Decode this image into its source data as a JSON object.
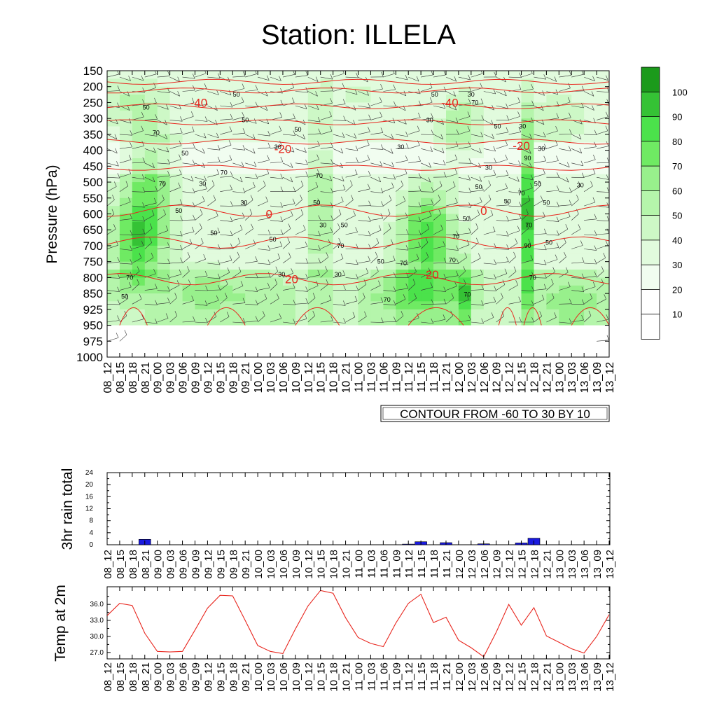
{
  "title": "Station: ILLELA",
  "time_labels": [
    "08_12",
    "08_15",
    "08_18",
    "08_21",
    "09_00",
    "09_03",
    "09_06",
    "09_09",
    "09_12",
    "09_15",
    "09_18",
    "09_21",
    "10_00",
    "10_03",
    "10_06",
    "10_09",
    "10_12",
    "10_15",
    "10_18",
    "10_21",
    "11_00",
    "11_03",
    "11_06",
    "11_09",
    "11_12",
    "11_15",
    "11_18",
    "11_21",
    "12_00",
    "12_03",
    "12_06",
    "12_09",
    "12_12",
    "12_15",
    "12_18",
    "12_21",
    "13_00",
    "13_03",
    "13_06",
    "13_09",
    "13_12"
  ],
  "colors": {
    "green_scale": [
      "#ffffff",
      "#f1fdf0",
      "#e1fbdd",
      "#cdf8c6",
      "#b5f5ab",
      "#98f08c",
      "#6fea63",
      "#4be24b",
      "#35c235",
      "#1b9a1b"
    ],
    "temp_contour": "#e8261e",
    "rain_bar": "#1a1ae0",
    "temp_line": "#e8261e"
  },
  "chart_data": [
    {
      "type": "heatmap",
      "ylabel": "Pressure (hPa)",
      "y_ticks": [
        150,
        200,
        250,
        300,
        350,
        400,
        450,
        500,
        550,
        600,
        650,
        700,
        750,
        800,
        850,
        925,
        950,
        975,
        1000
      ],
      "colorbar_ticks": [
        10,
        20,
        30,
        40,
        50,
        60,
        70,
        80,
        90,
        100
      ],
      "contour_info": "CONTOUR FROM -60 TO 30 BY 10",
      "contour_labels": [
        {
          "text": "-40",
          "t": 7.3,
          "p": 250
        },
        {
          "text": "-40",
          "t": 27.3,
          "p": 250
        },
        {
          "text": "-20",
          "t": 14.0,
          "p": 395
        },
        {
          "text": "-20",
          "t": 33.0,
          "p": 385
        },
        {
          "text": "0",
          "t": 12.9,
          "p": 600
        },
        {
          "text": "0",
          "t": 30.0,
          "p": 590
        },
        {
          "text": "20",
          "t": 14.7,
          "p": 805
        },
        {
          "text": "20",
          "t": 25.9,
          "p": 790
        }
      ],
      "rh_labels": [
        {
          "text": "50",
          "t": 3.1,
          "p": 265
        },
        {
          "text": "70",
          "t": 3.9,
          "p": 345
        },
        {
          "text": "50",
          "t": 6.2,
          "p": 410
        },
        {
          "text": "70",
          "t": 4.4,
          "p": 505
        },
        {
          "text": "50",
          "t": 5.7,
          "p": 590
        },
        {
          "text": "50",
          "t": 8.5,
          "p": 660
        },
        {
          "text": "70",
          "t": 1.8,
          "p": 800
        },
        {
          "text": "50",
          "t": 1.4,
          "p": 865
        },
        {
          "text": "50",
          "t": 10.3,
          "p": 225
        },
        {
          "text": "50",
          "t": 11.0,
          "p": 305
        },
        {
          "text": "30",
          "t": 13.6,
          "p": 390
        },
        {
          "text": "70",
          "t": 9.3,
          "p": 470
        },
        {
          "text": "30",
          "t": 7.6,
          "p": 505
        },
        {
          "text": "30",
          "t": 10.9,
          "p": 565
        },
        {
          "text": "50",
          "t": 13.2,
          "p": 680
        },
        {
          "text": "50",
          "t": 15.2,
          "p": 335
        },
        {
          "text": "30",
          "t": 17.2,
          "p": 635
        },
        {
          "text": "50",
          "t": 16.7,
          "p": 565
        },
        {
          "text": "70",
          "t": 16.9,
          "p": 480
        },
        {
          "text": "50",
          "t": 18.9,
          "p": 635
        },
        {
          "text": "70",
          "t": 18.6,
          "p": 700
        },
        {
          "text": "30",
          "t": 13.9,
          "p": 790
        },
        {
          "text": "30",
          "t": 18.4,
          "p": 790
        },
        {
          "text": "30",
          "t": 23.4,
          "p": 390
        },
        {
          "text": "50",
          "t": 26.1,
          "p": 225
        },
        {
          "text": "30",
          "t": 25.7,
          "p": 305
        },
        {
          "text": "50",
          "t": 29.6,
          "p": 515
        },
        {
          "text": "50",
          "t": 28.6,
          "p": 615
        },
        {
          "text": "70",
          "t": 27.8,
          "p": 670
        },
        {
          "text": "70",
          "t": 27.5,
          "p": 745
        },
        {
          "text": "50",
          "t": 21.8,
          "p": 750
        },
        {
          "text": "70",
          "t": 23.6,
          "p": 755
        },
        {
          "text": "70",
          "t": 22.3,
          "p": 880
        },
        {
          "text": "30",
          "t": 29.0,
          "p": 225
        },
        {
          "text": "70",
          "t": 29.3,
          "p": 250
        },
        {
          "text": "50",
          "t": 31.1,
          "p": 325
        },
        {
          "text": "30",
          "t": 33.1,
          "p": 325
        },
        {
          "text": "30",
          "t": 34.6,
          "p": 395
        },
        {
          "text": "90",
          "t": 33.5,
          "p": 425
        },
        {
          "text": "30",
          "t": 30.4,
          "p": 455
        },
        {
          "text": "50",
          "t": 34.3,
          "p": 505
        },
        {
          "text": "70",
          "t": 33.0,
          "p": 535
        },
        {
          "text": "50",
          "t": 31.9,
          "p": 560
        },
        {
          "text": "50",
          "t": 35.0,
          "p": 565
        },
        {
          "text": "70",
          "t": 33.6,
          "p": 635
        },
        {
          "text": "90",
          "t": 33.5,
          "p": 700
        },
        {
          "text": "50",
          "t": 35.2,
          "p": 690
        },
        {
          "text": "70",
          "t": 33.9,
          "p": 800
        },
        {
          "text": "70",
          "t": 28.7,
          "p": 855
        },
        {
          "text": "30",
          "t": 37.7,
          "p": 510
        }
      ]
    },
    {
      "type": "bar",
      "ylabel": "3hr rain total",
      "y_ticks": [
        0,
        4,
        8,
        12,
        16,
        20,
        24
      ],
      "ylim": [
        0,
        24
      ],
      "values": [
        0,
        0,
        0,
        1.8,
        0,
        0,
        0,
        0,
        0,
        0,
        0,
        0,
        0,
        0,
        0,
        0,
        0,
        0,
        0,
        0,
        0,
        0,
        0,
        0,
        0.2,
        1.0,
        0,
        0.7,
        0,
        0,
        0.3,
        0,
        0,
        0.6,
        2.2,
        0,
        0,
        0,
        0,
        0,
        0
      ]
    },
    {
      "type": "line",
      "ylabel": "Temp at 2m",
      "y_ticks": [
        "27.0",
        "30.0",
        "33.0",
        "36.0"
      ],
      "ylim": [
        25.8,
        39.3
      ],
      "values": [
        33.9,
        36.2,
        35.8,
        30.6,
        27.2,
        27.1,
        27.2,
        31.2,
        35.3,
        37.7,
        37.6,
        33.0,
        28.3,
        27.2,
        26.8,
        31.4,
        35.7,
        38.6,
        38.1,
        33.5,
        29.8,
        28.7,
        28.1,
        32.5,
        36.2,
        37.9,
        32.6,
        33.6,
        29.3,
        27.9,
        26.2,
        30.8,
        36.0,
        32.1,
        35.4,
        30.1,
        28.9,
        27.7,
        26.9,
        30.0,
        34.1
      ]
    }
  ]
}
